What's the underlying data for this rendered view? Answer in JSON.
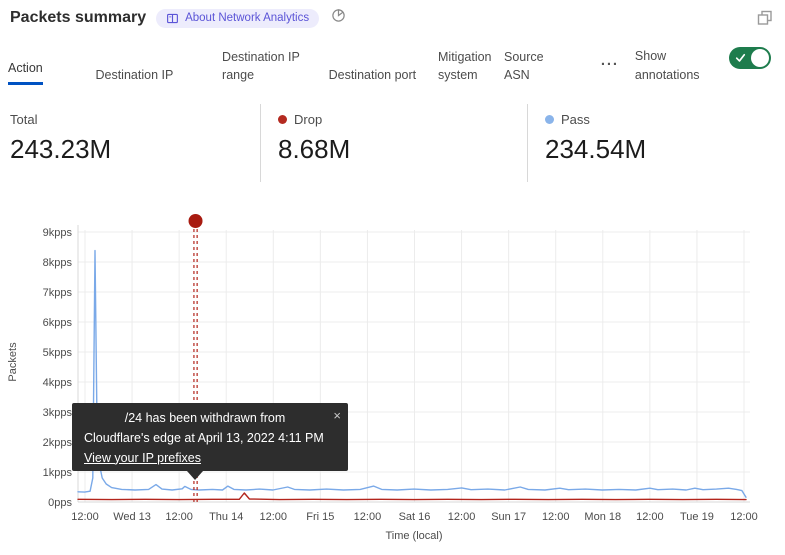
{
  "header": {
    "title": "Packets summary",
    "badge": "About Network Analytics"
  },
  "icons": {
    "more": "···",
    "close": "×"
  },
  "tabs": {
    "items": [
      {
        "label": "Action",
        "active": true
      },
      {
        "label": "Destination IP",
        "active": false
      },
      {
        "label": "Destination IP range",
        "active": false
      },
      {
        "label": "Destination port",
        "active": false
      },
      {
        "label": "Mitigation system",
        "active": false
      },
      {
        "label": "Source ASN",
        "active": false
      }
    ],
    "annotations_label": "Show annotations",
    "toggle_on": true,
    "toggle_color": "#1e7c4d"
  },
  "stats": {
    "items": [
      {
        "label": "Total",
        "value": "243.23M"
      },
      {
        "label": "Drop",
        "value": "8.68M",
        "dot": "#b42a20"
      },
      {
        "label": "Pass",
        "value": "234.54M",
        "dot": "#8ab4ea"
      }
    ]
  },
  "tooltip": {
    "line1": "/24 has been withdrawn from",
    "line2": "Cloudflare's edge at April 13, 2022 4:11 PM",
    "link": "View your IP prefixes"
  },
  "chart_data": {
    "type": "line",
    "title": "Packets summary",
    "xlabel": "Time (local)",
    "ylabel": "Packets",
    "ylim": [
      0,
      9.35
    ],
    "grid": true,
    "legend_position": "none",
    "x_ticks": [
      "12:00",
      "Wed 13",
      "12:00",
      "Thu 14",
      "12:00",
      "Fri 15",
      "12:00",
      "Sat 16",
      "12:00",
      "Sun 17",
      "12:00",
      "Mon 18",
      "12:00",
      "Tue 19",
      "12:00"
    ],
    "y_tick_labels": [
      "0pps",
      "1kpps",
      "2kpps",
      "3kpps",
      "4kpps",
      "5kpps",
      "6kpps",
      "7kpps",
      "8kpps",
      "9kpps"
    ],
    "annotation": {
      "x_frac": 0.1749,
      "dot_color": "#a81b10",
      "line_color": "#b3251c",
      "text": "/24 has been withdrawn from Cloudflare's edge at April 13, 2022 4:11 PM"
    },
    "series": [
      {
        "name": "Pass",
        "color": "#7aa9e8",
        "unit": "kpps",
        "points": [
          [
            0.0,
            0.34
          ],
          [
            0.01,
            0.33
          ],
          [
            0.018,
            0.36
          ],
          [
            0.022,
            0.8
          ],
          [
            0.0253,
            8.38
          ],
          [
            0.028,
            3.2
          ],
          [
            0.031,
            1.35
          ],
          [
            0.036,
            0.8
          ],
          [
            0.042,
            0.6
          ],
          [
            0.05,
            0.48
          ],
          [
            0.065,
            0.42
          ],
          [
            0.085,
            0.4
          ],
          [
            0.105,
            0.42
          ],
          [
            0.116,
            0.58
          ],
          [
            0.125,
            0.43
          ],
          [
            0.14,
            0.4
          ],
          [
            0.155,
            0.44
          ],
          [
            0.159,
            0.52
          ],
          [
            0.168,
            0.42
          ],
          [
            0.18,
            0.4
          ],
          [
            0.2,
            0.42
          ],
          [
            0.215,
            0.4
          ],
          [
            0.223,
            0.53
          ],
          [
            0.232,
            0.42
          ],
          [
            0.25,
            0.4
          ],
          [
            0.27,
            0.43
          ],
          [
            0.29,
            0.4
          ],
          [
            0.312,
            0.5
          ],
          [
            0.322,
            0.42
          ],
          [
            0.345,
            0.4
          ],
          [
            0.37,
            0.43
          ],
          [
            0.395,
            0.4
          ],
          [
            0.42,
            0.42
          ],
          [
            0.44,
            0.53
          ],
          [
            0.452,
            0.42
          ],
          [
            0.475,
            0.4
          ],
          [
            0.5,
            0.43
          ],
          [
            0.525,
            0.4
          ],
          [
            0.55,
            0.42
          ],
          [
            0.571,
            0.47
          ],
          [
            0.585,
            0.41
          ],
          [
            0.61,
            0.43
          ],
          [
            0.635,
            0.4
          ],
          [
            0.658,
            0.5
          ],
          [
            0.67,
            0.42
          ],
          [
            0.695,
            0.4
          ],
          [
            0.717,
            0.46
          ],
          [
            0.73,
            0.41
          ],
          [
            0.755,
            0.43
          ],
          [
            0.78,
            0.4
          ],
          [
            0.805,
            0.42
          ],
          [
            0.83,
            0.4
          ],
          [
            0.851,
            0.46
          ],
          [
            0.863,
            0.41
          ],
          [
            0.885,
            0.43
          ],
          [
            0.905,
            0.4
          ],
          [
            0.918,
            0.46
          ],
          [
            0.93,
            0.41
          ],
          [
            0.95,
            0.43
          ],
          [
            0.968,
            0.46
          ],
          [
            0.98,
            0.42
          ],
          [
            0.988,
            0.38
          ],
          [
            0.994,
            0.16
          ]
        ]
      },
      {
        "name": "Drop",
        "color": "#b3251c",
        "unit": "kpps",
        "points": [
          [
            0.0,
            0.09
          ],
          [
            0.05,
            0.08
          ],
          [
            0.1,
            0.09
          ],
          [
            0.15,
            0.08
          ],
          [
            0.2,
            0.09
          ],
          [
            0.24,
            0.09
          ],
          [
            0.2475,
            0.3
          ],
          [
            0.255,
            0.1
          ],
          [
            0.3,
            0.08
          ],
          [
            0.35,
            0.09
          ],
          [
            0.4,
            0.08
          ],
          [
            0.45,
            0.09
          ],
          [
            0.5,
            0.08
          ],
          [
            0.55,
            0.09
          ],
          [
            0.6,
            0.08
          ],
          [
            0.65,
            0.09
          ],
          [
            0.7,
            0.08
          ],
          [
            0.75,
            0.09
          ],
          [
            0.8,
            0.08
          ],
          [
            0.85,
            0.09
          ],
          [
            0.9,
            0.08
          ],
          [
            0.95,
            0.09
          ],
          [
            0.994,
            0.08
          ]
        ]
      }
    ]
  }
}
